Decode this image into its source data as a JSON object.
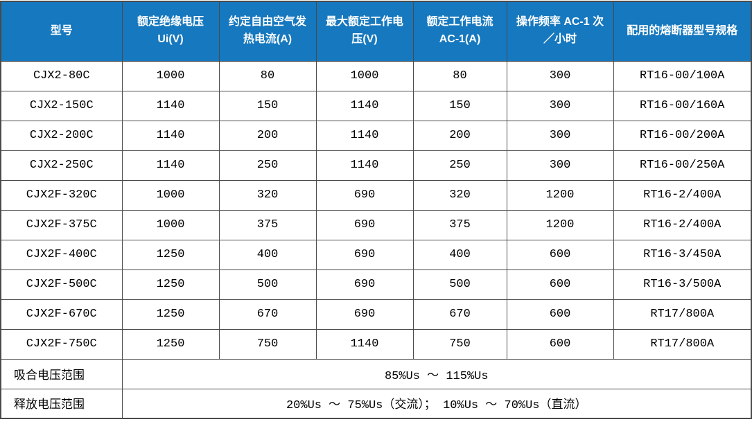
{
  "table": {
    "headers": [
      "型号",
      "额定绝缘电压 Ui(V)",
      "约定自由空气发热电流(A)",
      "最大额定工作电压(V)",
      "额定工作电流 AC-1(A)",
      "操作频率 AC-1 次／小时",
      "配用的熔断器型号规格"
    ],
    "rows": [
      [
        "CJX2-80C",
        "1000",
        "80",
        "1000",
        "80",
        "300",
        "RT16-00/100A"
      ],
      [
        "CJX2-150C",
        "1140",
        "150",
        "1140",
        "150",
        "300",
        "RT16-00/160A"
      ],
      [
        "CJX2-200C",
        "1140",
        "200",
        "1140",
        "200",
        "300",
        "RT16-00/200A"
      ],
      [
        "CJX2-250C",
        "1140",
        "250",
        "1140",
        "250",
        "300",
        "RT16-00/250A"
      ],
      [
        "CJX2F-320C",
        "1000",
        "320",
        "690",
        "320",
        "1200",
        "RT16-2/400A"
      ],
      [
        "CJX2F-375C",
        "1000",
        "375",
        "690",
        "375",
        "1200",
        "RT16-2/400A"
      ],
      [
        "CJX2F-400C",
        "1250",
        "400",
        "690",
        "400",
        "600",
        "RT16-3/450A"
      ],
      [
        "CJX2F-500C",
        "1250",
        "500",
        "690",
        "500",
        "600",
        "RT16-3/500A"
      ],
      [
        "CJX2F-670C",
        "1250",
        "670",
        "690",
        "670",
        "600",
        "RT17/800A"
      ],
      [
        "CJX2F-750C",
        "1250",
        "750",
        "1140",
        "750",
        "600",
        "RT17/800A"
      ]
    ],
    "footer_rows": [
      {
        "label": "吸合电压范围",
        "value": "85%Us ～ 115%Us"
      },
      {
        "label": "释放电压范围",
        "value": "20%Us ～ 75%Us（交流）； 10%Us ～ 70%Us（直流）"
      }
    ],
    "colors": {
      "header_bg": "#1678BE",
      "header_text": "#FFFFFF",
      "border": "#4A4A4A",
      "row_bg": "#FFFFFF",
      "text": "#000000"
    }
  }
}
